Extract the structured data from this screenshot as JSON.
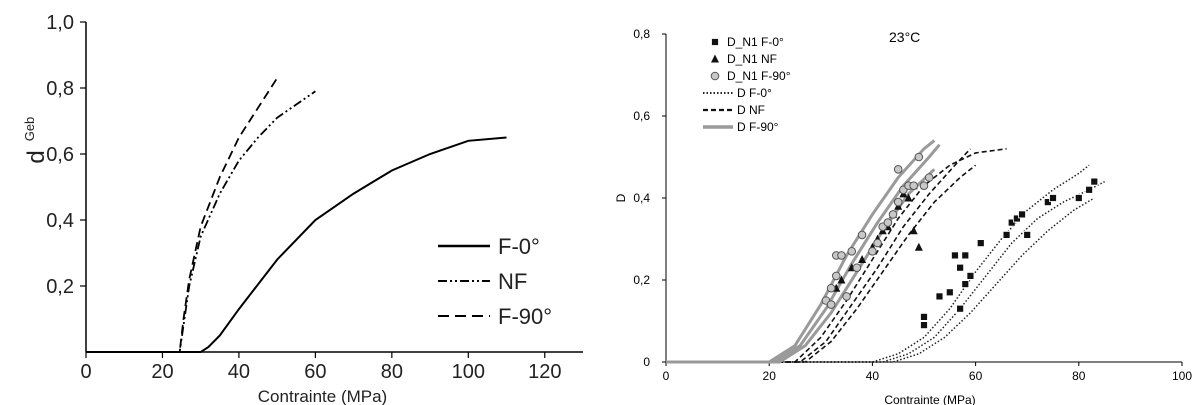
{
  "chart_data": [
    {
      "type": "line",
      "title": "",
      "xlabel": "Contrainte (MPa)",
      "ylabel": "d",
      "ylabel_sup": "Geb",
      "xlim": [
        0,
        130
      ],
      "ylim": [
        0,
        1.0
      ],
      "xticks": [
        "0",
        "20",
        "40",
        "60",
        "80",
        "100",
        "120"
      ],
      "xtick_values": [
        0,
        20,
        40,
        60,
        80,
        100,
        120
      ],
      "yticks": [
        "0,2",
        "0,4",
        "0,6",
        "0,8",
        "1,0"
      ],
      "ytick_values": [
        0.2,
        0.4,
        0.6,
        0.8,
        1.0
      ],
      "legend_position": "bottom-right",
      "series": [
        {
          "name": "F-0°",
          "style": "solid",
          "x": [
            0,
            30,
            32,
            35,
            40,
            50,
            60,
            70,
            80,
            90,
            100,
            110
          ],
          "y": [
            0,
            0,
            0.015,
            0.05,
            0.13,
            0.28,
            0.4,
            0.48,
            0.55,
            0.6,
            0.64,
            0.65
          ]
        },
        {
          "name": "NF",
          "style": "dashdotdot",
          "x": [
            0,
            24.5,
            25.5,
            27,
            30,
            35,
            40,
            45,
            50,
            55,
            60
          ],
          "y": [
            0,
            0,
            0.08,
            0.2,
            0.35,
            0.48,
            0.58,
            0.65,
            0.71,
            0.75,
            0.79
          ]
        },
        {
          "name": "F-90°",
          "style": "dashed",
          "x": [
            0,
            24.5,
            25.5,
            27,
            30,
            35,
            40,
            45,
            50
          ],
          "y": [
            0,
            0,
            0.1,
            0.22,
            0.38,
            0.53,
            0.65,
            0.74,
            0.83
          ]
        }
      ]
    },
    {
      "type": "scatter",
      "title": "",
      "annotation": "23°C",
      "xlabel": "Contrainte (MPa)",
      "ylabel": "D",
      "xlim": [
        0,
        100
      ],
      "ylim": [
        0,
        0.8
      ],
      "xticks": [
        "0",
        "20",
        "40",
        "60",
        "80",
        "100"
      ],
      "xtick_values": [
        0,
        20,
        40,
        60,
        80,
        100
      ],
      "yticks": [
        "0",
        "0,2",
        "0,4",
        "0,6",
        "0,8"
      ],
      "ytick_values": [
        0,
        0.2,
        0.4,
        0.6,
        0.8
      ],
      "legend_position": "top-left",
      "legend": [
        {
          "name": "D_N1 F-0°",
          "marker": "square"
        },
        {
          "name": "D_N1  NF",
          "marker": "triangle"
        },
        {
          "name": "D_N1 F-90°",
          "marker": "circle"
        },
        {
          "name": "D F-0°",
          "line": "dotted"
        },
        {
          "name": "D NF",
          "line": "dashed"
        },
        {
          "name": "D F-90°",
          "line": "solid-gray"
        }
      ],
      "points": [
        {
          "name": "D_N1 F-0°",
          "marker": "square",
          "x": [
            50,
            50,
            53,
            55,
            56,
            57,
            57,
            58,
            58,
            59,
            61,
            66,
            67,
            68,
            69,
            70,
            74,
            75,
            80,
            82,
            83
          ],
          "y": [
            0.09,
            0.11,
            0.16,
            0.17,
            0.26,
            0.13,
            0.23,
            0.19,
            0.26,
            0.21,
            0.29,
            0.31,
            0.34,
            0.35,
            0.36,
            0.31,
            0.39,
            0.4,
            0.4,
            0.42,
            0.44
          ]
        },
        {
          "name": "D_N1  NF",
          "marker": "triangle",
          "x": [
            33,
            34,
            36,
            38,
            40,
            41,
            42,
            43,
            44,
            45,
            46,
            47,
            48,
            48,
            49
          ],
          "y": [
            0.18,
            0.2,
            0.23,
            0.25,
            0.28,
            0.3,
            0.32,
            0.33,
            0.36,
            0.38,
            0.41,
            0.4,
            0.43,
            0.32,
            0.28
          ]
        },
        {
          "name": "D_N1 F-90°",
          "marker": "circle",
          "x": [
            31,
            32,
            32,
            33,
            33,
            34,
            35,
            36,
            37,
            38,
            40,
            41,
            42,
            43,
            44,
            45,
            45,
            46,
            47,
            48,
            49,
            50,
            51
          ],
          "y": [
            0.15,
            0.14,
            0.18,
            0.21,
            0.26,
            0.26,
            0.16,
            0.27,
            0.23,
            0.31,
            0.27,
            0.29,
            0.33,
            0.34,
            0.36,
            0.39,
            0.47,
            0.42,
            0.43,
            0.43,
            0.5,
            0.43,
            0.45
          ]
        }
      ],
      "curves": [
        {
          "name": "D F-0°",
          "style": "dotted",
          "x": [
            0,
            40,
            45,
            50,
            55,
            60,
            65,
            70,
            75,
            80,
            82
          ],
          "y": [
            0,
            0,
            0.02,
            0.06,
            0.13,
            0.22,
            0.3,
            0.37,
            0.42,
            0.46,
            0.48
          ]
        },
        {
          "name": "D F-0°",
          "style": "dotted",
          "x": [
            0,
            42,
            47,
            52,
            57,
            62,
            67,
            72,
            77,
            82,
            85
          ],
          "y": [
            0,
            0,
            0.02,
            0.06,
            0.13,
            0.21,
            0.29,
            0.35,
            0.39,
            0.42,
            0.44
          ]
        },
        {
          "name": "D F-0°",
          "style": "dotted",
          "x": [
            0,
            44,
            49,
            54,
            59,
            64,
            69,
            74,
            79,
            83
          ],
          "y": [
            0,
            0,
            0.02,
            0.06,
            0.12,
            0.19,
            0.26,
            0.32,
            0.37,
            0.4
          ]
        },
        {
          "name": "D NF",
          "style": "dashed",
          "x": [
            0,
            25,
            30,
            35,
            40,
            45,
            50,
            55,
            60,
            66
          ],
          "y": [
            0,
            0,
            0.06,
            0.15,
            0.25,
            0.35,
            0.43,
            0.48,
            0.51,
            0.52
          ]
        },
        {
          "name": "D NF",
          "style": "dashed",
          "x": [
            0,
            26,
            31,
            36,
            41,
            46,
            51,
            56,
            59
          ],
          "y": [
            0,
            0,
            0.05,
            0.14,
            0.23,
            0.33,
            0.41,
            0.48,
            0.52
          ]
        },
        {
          "name": "D NF",
          "style": "dashed",
          "x": [
            0,
            27,
            32,
            37,
            42,
            47,
            52,
            57,
            60
          ],
          "y": [
            0,
            0,
            0.05,
            0.13,
            0.22,
            0.31,
            0.39,
            0.45,
            0.48
          ]
        },
        {
          "name": "D F-90°",
          "style": "solid-gray",
          "x": [
            0,
            20,
            25,
            30,
            35,
            40,
            45,
            50,
            52
          ],
          "y": [
            0,
            0,
            0.04,
            0.14,
            0.26,
            0.36,
            0.45,
            0.52,
            0.54
          ]
        },
        {
          "name": "D F-90°",
          "style": "solid-gray",
          "x": [
            0,
            21,
            26,
            31,
            36,
            41,
            46,
            51,
            53
          ],
          "y": [
            0,
            0,
            0.04,
            0.13,
            0.24,
            0.34,
            0.43,
            0.5,
            0.53
          ]
        },
        {
          "name": "D F-90°",
          "style": "solid-gray",
          "x": [
            0,
            22,
            27,
            32,
            37,
            42,
            47,
            52
          ],
          "y": [
            0,
            0,
            0.04,
            0.12,
            0.22,
            0.32,
            0.41,
            0.47
          ]
        }
      ]
    }
  ]
}
